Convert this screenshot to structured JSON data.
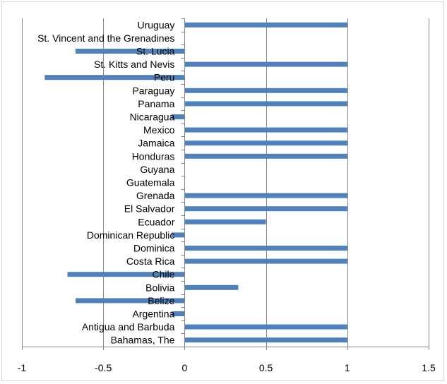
{
  "chart_data": {
    "type": "bar",
    "orientation": "horizontal",
    "categories": [
      "Uruguay",
      "St. Vincent and the Grenadines",
      "St. Lucia",
      "St. Kitts and Nevis",
      "Peru",
      "Paraguay",
      "Panama",
      "Nicaragua",
      "Mexico",
      "Jamaica",
      "Honduras",
      "Guyana",
      "Guatemala",
      "Grenada",
      "El Salvador",
      "Ecuador",
      "Dominican Republic",
      "Dominica",
      "Costa Rica",
      "Chile",
      "Bolivia",
      "Belize",
      "Argentina",
      "Antigua and Barbuda",
      "Bahamas, The"
    ],
    "values": [
      1,
      0,
      -0.67,
      1,
      -0.86,
      1,
      1,
      -0.08,
      1,
      1,
      1,
      0,
      0,
      1,
      1,
      0.5,
      -0.08,
      1,
      1,
      -0.72,
      0.33,
      -0.67,
      -0.08,
      1,
      1
    ],
    "xlim": [
      -1,
      1.5
    ],
    "xticks": [
      -1,
      -0.5,
      0,
      0.5,
      1,
      1.5
    ],
    "xtick_labels": [
      "-1",
      "-0.5",
      "0",
      "0.5",
      "1",
      "1.5"
    ],
    "title": "",
    "xlabel": "",
    "ylabel": "",
    "grid": "vertical",
    "legend": "none",
    "bar_color": "#4f81bd",
    "grid_color": "#868686",
    "axis_color": "#868686"
  }
}
